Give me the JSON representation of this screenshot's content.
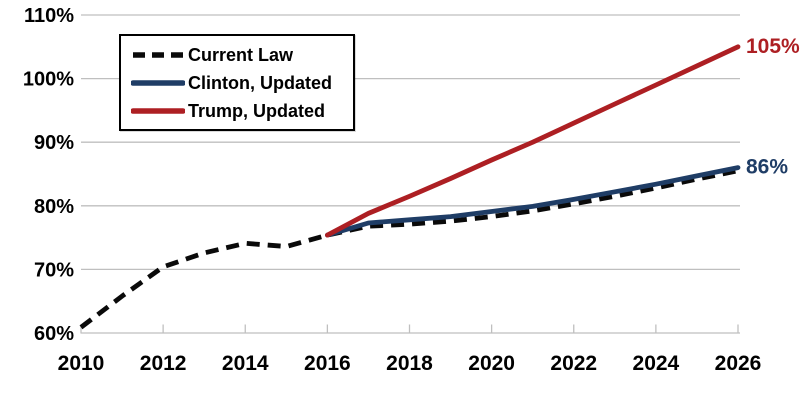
{
  "page": {
    "background": "#ffffff"
  },
  "colors": {
    "gridline": "#BFBFBF",
    "axis_line": "#BFBFBF",
    "tick_mark": "#BFBFBF",
    "axis_text": "#000000",
    "legend_border": "#000000",
    "legend_background": "#ffffff"
  },
  "chart_data": {
    "type": "line",
    "title": "",
    "xlabel": "",
    "ylabel": "",
    "xlim": [
      2010,
      2026
    ],
    "ylim": [
      60,
      110
    ],
    "x_ticks": [
      2010,
      2012,
      2014,
      2016,
      2018,
      2020,
      2022,
      2024,
      2026
    ],
    "y_ticks": [
      60,
      70,
      80,
      90,
      100,
      110
    ],
    "y_tick_suffix": "%",
    "grid": "horizontal-only",
    "legend_position": "top-left-boxed",
    "series": [
      {
        "name": "Current Law",
        "color": "#0A0A0A",
        "line_style": "dashed",
        "x": [
          2010,
          2011,
          2012,
          2013,
          2014,
          2015,
          2016,
          2017,
          2018,
          2019,
          2020,
          2021,
          2022,
          2023,
          2024,
          2025,
          2026
        ],
        "values": [
          60.9,
          65.8,
          70.4,
          72.6,
          74.1,
          73.6,
          75.4,
          76.8,
          77.1,
          77.6,
          78.3,
          79.2,
          80.3,
          81.5,
          82.8,
          84.2,
          85.5
        ],
        "end_label": ""
      },
      {
        "name": "Clinton, Updated",
        "color": "#1F3D66",
        "line_style": "solid",
        "x": [
          2016,
          2017,
          2018,
          2019,
          2020,
          2021,
          2022,
          2023,
          2024,
          2025,
          2026
        ],
        "values": [
          75.4,
          77.3,
          77.8,
          78.3,
          79.1,
          79.9,
          81.0,
          82.2,
          83.4,
          84.7,
          86.0
        ],
        "end_label": "86%"
      },
      {
        "name": "Trump, Updated",
        "color": "#AD1F23",
        "line_style": "solid",
        "x": [
          2016,
          2017,
          2018,
          2019,
          2020,
          2021,
          2022,
          2023,
          2024,
          2025,
          2026
        ],
        "values": [
          75.4,
          78.8,
          81.5,
          84.3,
          87.2,
          90.0,
          93.0,
          96.0,
          99.0,
          102.0,
          105.0
        ],
        "end_label": "105%"
      }
    ]
  }
}
